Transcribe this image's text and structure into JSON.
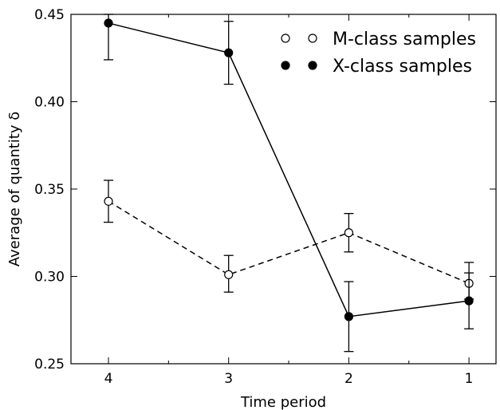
{
  "chart_data": {
    "type": "line",
    "categories": [
      "4",
      "3",
      "2",
      "1"
    ],
    "xlabel": "Time period",
    "ylabel": "Average of quantity δ",
    "ylim": [
      0.25,
      0.45
    ],
    "yticks": [
      "0.25",
      "0.30",
      "0.35",
      "0.40",
      "0.45"
    ],
    "grid": false,
    "legend_position": "top-right",
    "series": [
      {
        "name": "M-class samples",
        "marker": "open-circle",
        "line_style": "dashed",
        "color": "#000000",
        "values": [
          0.343,
          0.301,
          0.325,
          0.296
        ],
        "error_low": [
          0.331,
          0.291,
          0.314,
          0.287
        ],
        "error_high": [
          0.355,
          0.312,
          0.336,
          0.308
        ]
      },
      {
        "name": "X-class samples",
        "marker": "filled-circle",
        "line_style": "solid",
        "color": "#000000",
        "values": [
          0.445,
          0.428,
          0.277,
          0.286
        ],
        "error_low": [
          0.424,
          0.41,
          0.257,
          0.27
        ],
        "error_high": [
          0.45,
          0.446,
          0.297,
          0.302
        ]
      }
    ]
  }
}
